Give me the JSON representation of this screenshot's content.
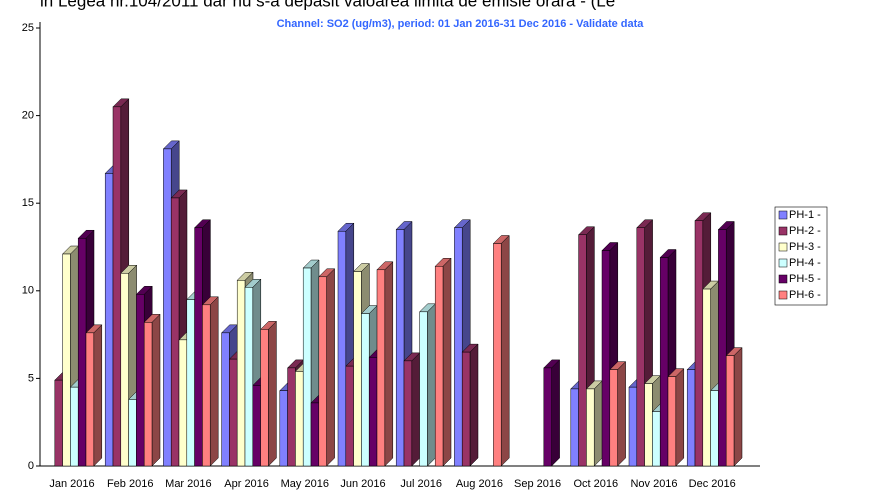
{
  "header_text": "in Legea nr.104/2011 dar nu s-a depasit valoarea limita de emisie orara - (Le",
  "chart_data": {
    "type": "bar3d",
    "title": "Channel: SO2 (ug/m3), period: 01 Jan 2016-31 Dec 2016 - Validate data",
    "categories": [
      "Jan 2016",
      "Feb 2016",
      "Mar 2016",
      "Apr 2016",
      "May 2016",
      "Jun 2016",
      "Jul 2016",
      "Aug 2016",
      "Sep 2016",
      "Oct 2016",
      "Nov 2016",
      "Dec 2016"
    ],
    "series": [
      {
        "name": "PH-1 -",
        "color": "#8080ff",
        "values": [
          null,
          16.7,
          18.1,
          7.6,
          4.3,
          13.4,
          13.5,
          13.6,
          null,
          4.4,
          4.5,
          5.5
        ]
      },
      {
        "name": "PH-2 -",
        "color": "#993366",
        "values": [
          4.9,
          20.5,
          15.3,
          6.1,
          5.6,
          5.7,
          6.0,
          6.5,
          null,
          13.2,
          13.6,
          14.0
        ]
      },
      {
        "name": "PH-3 -",
        "color": "#ffffcc",
        "values": [
          12.1,
          11.0,
          7.2,
          10.6,
          5.4,
          11.1,
          null,
          null,
          null,
          4.4,
          4.7,
          10.1
        ]
      },
      {
        "name": "PH-4 -",
        "color": "#ccffff",
        "values": [
          4.5,
          3.8,
          9.5,
          10.2,
          11.3,
          8.7,
          8.8,
          null,
          null,
          null,
          3.1,
          4.3
        ]
      },
      {
        "name": "PH-5 -",
        "color": "#660066",
        "values": [
          13.0,
          9.8,
          13.6,
          4.6,
          3.6,
          6.2,
          null,
          null,
          5.6,
          12.3,
          11.9,
          13.5
        ]
      },
      {
        "name": "PH-6 -",
        "color": "#ff8080",
        "values": [
          7.6,
          8.2,
          9.2,
          7.8,
          10.8,
          11.2,
          11.4,
          12.7,
          null,
          5.5,
          5.1,
          6.3
        ]
      }
    ],
    "ylim": [
      0,
      25
    ],
    "yticks": [
      0,
      5,
      10,
      15,
      20,
      25
    ],
    "legend": "right"
  }
}
